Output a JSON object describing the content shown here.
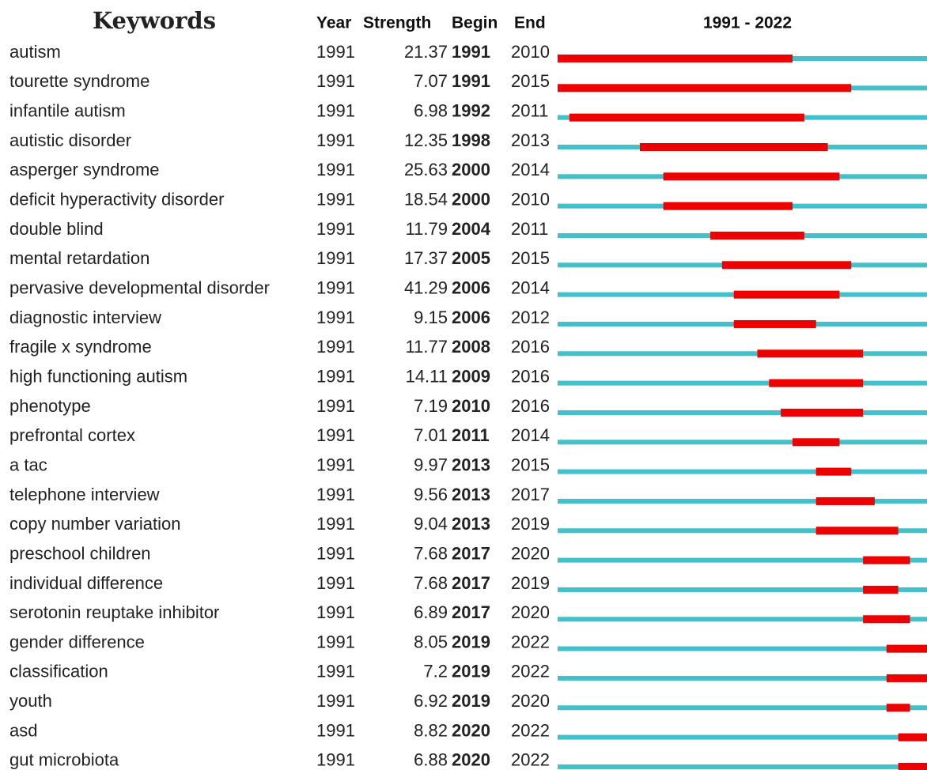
{
  "table": {
    "header": {
      "title": "Keywords",
      "year": "Year",
      "strength": "Strength",
      "begin": "Begin",
      "end": "End",
      "range": "1991 - 2022"
    },
    "timeline": {
      "start": 1991,
      "end": 2022,
      "base_color": "#43c0c9",
      "burst_color": "#ee0000"
    },
    "rows": [
      {
        "keyword": "autism",
        "year": 1991,
        "strength": 21.37,
        "begin": 1991,
        "end": 2010
      },
      {
        "keyword": "tourette syndrome",
        "year": 1991,
        "strength": 7.07,
        "begin": 1991,
        "end": 2015
      },
      {
        "keyword": "infantile autism",
        "year": 1991,
        "strength": 6.98,
        "begin": 1992,
        "end": 2011
      },
      {
        "keyword": "autistic disorder",
        "year": 1991,
        "strength": 12.35,
        "begin": 1998,
        "end": 2013
      },
      {
        "keyword": "asperger syndrome",
        "year": 1991,
        "strength": 25.63,
        "begin": 2000,
        "end": 2014
      },
      {
        "keyword": "deficit hyperactivity disorder",
        "year": 1991,
        "strength": 18.54,
        "begin": 2000,
        "end": 2010
      },
      {
        "keyword": "double blind",
        "year": 1991,
        "strength": 11.79,
        "begin": 2004,
        "end": 2011
      },
      {
        "keyword": "mental retardation",
        "year": 1991,
        "strength": 17.37,
        "begin": 2005,
        "end": 2015
      },
      {
        "keyword": "pervasive developmental disorder",
        "year": 1991,
        "strength": 41.29,
        "begin": 2006,
        "end": 2014
      },
      {
        "keyword": "diagnostic interview",
        "year": 1991,
        "strength": 9.15,
        "begin": 2006,
        "end": 2012
      },
      {
        "keyword": "fragile x syndrome",
        "year": 1991,
        "strength": 11.77,
        "begin": 2008,
        "end": 2016
      },
      {
        "keyword": "high functioning autism",
        "year": 1991,
        "strength": 14.11,
        "begin": 2009,
        "end": 2016
      },
      {
        "keyword": "phenotype",
        "year": 1991,
        "strength": 7.19,
        "begin": 2010,
        "end": 2016
      },
      {
        "keyword": "prefrontal cortex",
        "year": 1991,
        "strength": 7.01,
        "begin": 2011,
        "end": 2014
      },
      {
        "keyword": "a tac",
        "year": 1991,
        "strength": 9.97,
        "begin": 2013,
        "end": 2015
      },
      {
        "keyword": "telephone interview",
        "year": 1991,
        "strength": 9.56,
        "begin": 2013,
        "end": 2017
      },
      {
        "keyword": "copy number variation",
        "year": 1991,
        "strength": 9.04,
        "begin": 2013,
        "end": 2019
      },
      {
        "keyword": "preschool children",
        "year": 1991,
        "strength": 7.68,
        "begin": 2017,
        "end": 2020
      },
      {
        "keyword": "individual difference",
        "year": 1991,
        "strength": 7.68,
        "begin": 2017,
        "end": 2019
      },
      {
        "keyword": "serotonin reuptake inhibitor",
        "year": 1991,
        "strength": 6.89,
        "begin": 2017,
        "end": 2020
      },
      {
        "keyword": "gender difference",
        "year": 1991,
        "strength": 8.05,
        "begin": 2019,
        "end": 2022
      },
      {
        "keyword": "classification",
        "year": 1991,
        "strength": 7.2,
        "begin": 2019,
        "end": 2022
      },
      {
        "keyword": "youth",
        "year": 1991,
        "strength": 6.92,
        "begin": 2019,
        "end": 2020
      },
      {
        "keyword": "asd",
        "year": 1991,
        "strength": 8.82,
        "begin": 2020,
        "end": 2022
      },
      {
        "keyword": "gut microbiota",
        "year": 1991,
        "strength": 6.88,
        "begin": 2020,
        "end": 2022
      }
    ]
  }
}
